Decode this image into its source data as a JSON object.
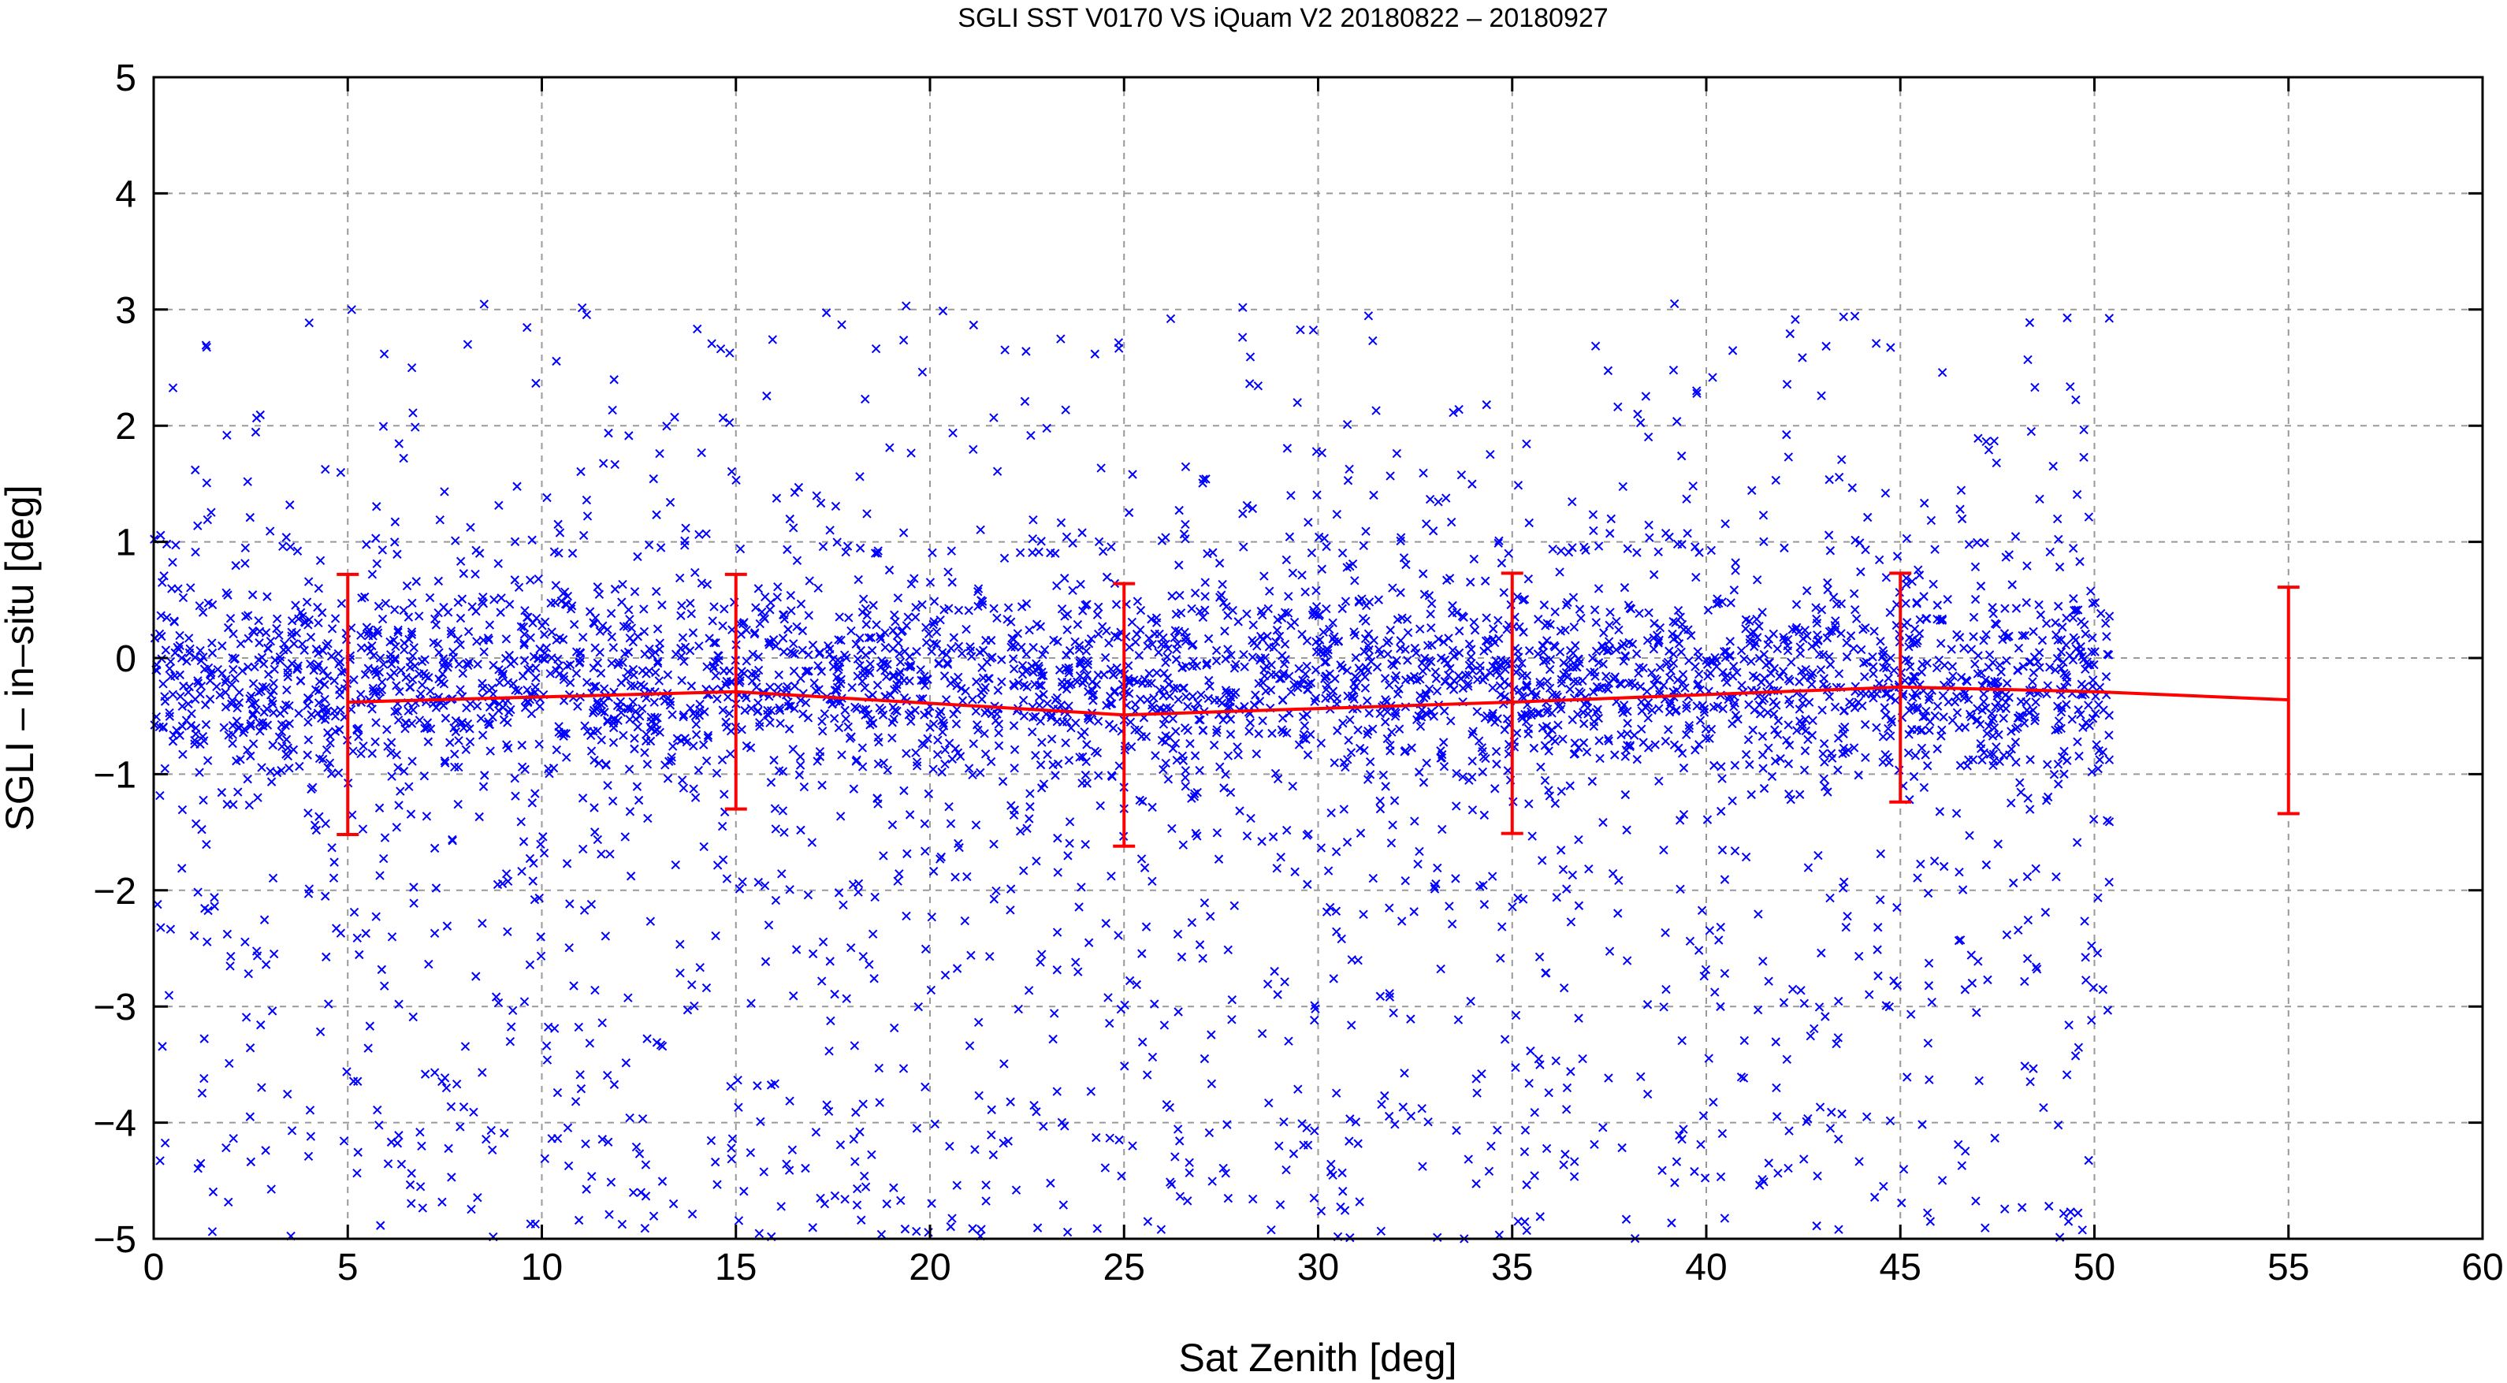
{
  "chart_data": {
    "type": "scatter",
    "title": "SGLI SST V0170 VS iQuam V2 20180822 – 20180927",
    "xlabel": "Sat Zenith [deg]",
    "ylabel": "SGLI – in–situ [deg]",
    "xlim": [
      0,
      60
    ],
    "ylim": [
      -5,
      5
    ],
    "xticks": [
      0,
      5,
      10,
      15,
      20,
      25,
      30,
      35,
      40,
      45,
      50,
      55,
      60
    ],
    "yticks": [
      -5,
      -4,
      -3,
      -2,
      -1,
      0,
      1,
      2,
      3,
      4,
      5
    ],
    "grid": true,
    "scatter_color": "#0000ff",
    "errorbar_color": "#ff0000",
    "scatter_distribution": {
      "x_range": [
        0,
        50.4
      ],
      "core_band_y": [
        -1.1,
        0.9
      ],
      "sparse_range_y": [
        -5,
        3.05
      ]
    },
    "errorbar_series": {
      "x": [
        5,
        15,
        25,
        35,
        45,
        55
      ],
      "mean": [
        -0.38,
        -0.29,
        -0.49,
        -0.38,
        -0.25,
        -0.36
      ],
      "lower": [
        -1.52,
        -1.3,
        -1.62,
        -1.51,
        -1.24,
        -1.34
      ],
      "upper": [
        0.72,
        0.72,
        0.64,
        0.73,
        0.73,
        0.61
      ]
    },
    "mean_line_x": [
      5,
      15,
      25,
      35,
      45,
      50,
      55
    ],
    "mean_line_y": [
      -0.38,
      -0.29,
      -0.49,
      -0.38,
      -0.25,
      -0.29,
      -0.36
    ]
  }
}
